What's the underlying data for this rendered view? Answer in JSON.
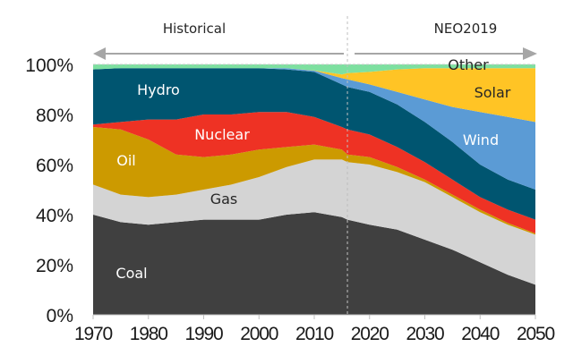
{
  "chart_data": {
    "type": "area",
    "stacked": true,
    "percent": true,
    "title": "",
    "xlabel": "",
    "ylabel": "",
    "xlim": [
      1970,
      2050
    ],
    "ylim": [
      0,
      100
    ],
    "x_ticks": [
      "1970",
      "1980",
      "1990",
      "2000",
      "2010",
      "2020",
      "2030",
      "2040",
      "2050"
    ],
    "y_ticks": [
      "0%",
      "20%",
      "40%",
      "60%",
      "80%",
      "100%"
    ],
    "periods": [
      {
        "label": "Historical",
        "from": 1970,
        "to": 2016,
        "arrow": "left"
      },
      {
        "label": "NEO2019",
        "from": 2016,
        "to": 2050,
        "arrow": "right"
      }
    ],
    "divider_year": 2016,
    "x": [
      1970,
      1975,
      1980,
      1985,
      1990,
      1995,
      2000,
      2005,
      2010,
      2015,
      2016,
      2020,
      2025,
      2030,
      2035,
      2040,
      2045,
      2050
    ],
    "series": [
      {
        "name": "Coal",
        "label": "Coal",
        "color": "#404040",
        "label_color": "#ffffff",
        "values": [
          40,
          37,
          36,
          37,
          38,
          38,
          38,
          40,
          41,
          39,
          38,
          36,
          34,
          30,
          26,
          21,
          16,
          12
        ]
      },
      {
        "name": "Gas",
        "label": "Gas",
        "color": "#d4d4d4",
        "label_color": "#262626",
        "values": [
          12,
          11,
          11,
          11,
          12,
          14,
          17,
          19,
          21,
          23,
          23,
          24,
          23,
          23,
          21,
          20,
          20,
          20
        ]
      },
      {
        "name": "Oil",
        "label": "Oil",
        "color": "#cc9a00",
        "label_color": "#ffffff",
        "values": [
          23,
          26,
          23,
          16,
          13,
          12,
          11,
          8,
          6,
          4,
          3,
          3,
          2,
          1,
          1,
          1,
          0.7,
          0.5
        ]
      },
      {
        "name": "Nuclear",
        "label": "Nuclear",
        "color": "#ee3224",
        "label_color": "#ffffff",
        "values": [
          1,
          3,
          8,
          14,
          17,
          16,
          15,
          14,
          11,
          9,
          10,
          9,
          8,
          7,
          6,
          5,
          5.3,
          5.5
        ]
      },
      {
        "name": "Hydro",
        "label": "Hydro",
        "color": "#005570",
        "label_color": "#ffffff",
        "values": [
          22,
          21.5,
          20.5,
          20.5,
          18.5,
          18.5,
          17.5,
          17,
          18,
          17,
          17,
          17,
          17,
          16,
          15,
          13,
          12,
          12
        ]
      },
      {
        "name": "Wind",
        "label": "Wind",
        "color": "#5b9bd5",
        "label_color": "#ffffff",
        "values": [
          0,
          0,
          0,
          0,
          0,
          0,
          0,
          0.5,
          0.5,
          2.5,
          3,
          3,
          5,
          9,
          14,
          21,
          25,
          27
        ]
      },
      {
        "name": "Solar",
        "label": "Solar",
        "color": "#ffc425",
        "label_color": "#262626",
        "values": [
          0,
          0,
          0,
          0,
          0,
          0,
          0,
          0,
          0.1,
          1.5,
          2.5,
          5,
          9,
          12.5,
          15.5,
          17.5,
          19.5,
          21.5
        ]
      },
      {
        "name": "Other",
        "label": "Other",
        "color": "#7de0a0",
        "label_color": "#262626",
        "values": [
          2,
          1.5,
          1.5,
          1.5,
          1.5,
          1.5,
          1.5,
          1.5,
          2.4,
          4,
          3.5,
          3,
          2,
          1.5,
          1.5,
          1.5,
          1.5,
          1.5
        ]
      }
    ],
    "grid": false,
    "legend": "inline-labels"
  }
}
